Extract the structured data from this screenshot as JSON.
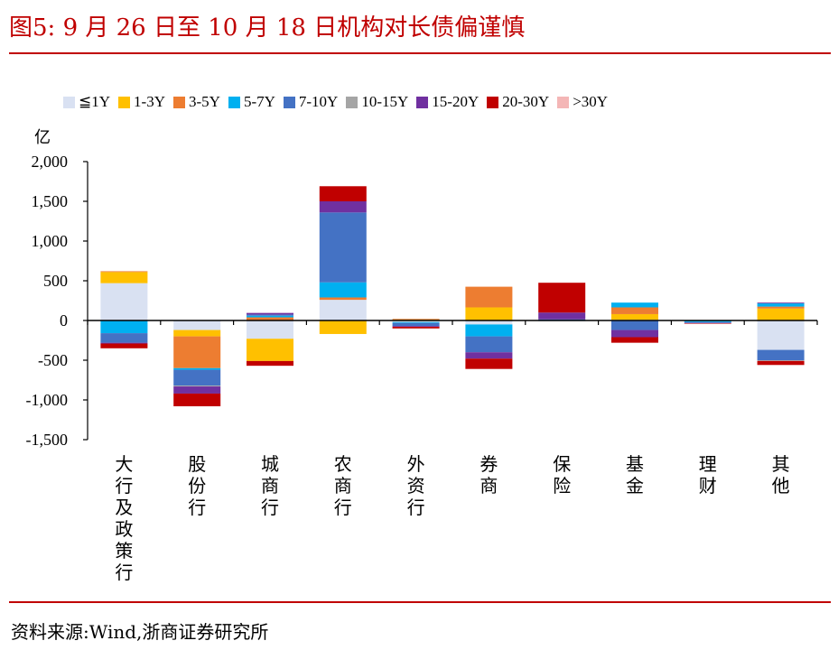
{
  "header": {
    "title": "图5:  9 月 26 日至 10 月 18 日机构对长债偏谨慎"
  },
  "footer": {
    "source": "资料来源:Wind,浙商证券研究所"
  },
  "chart_data": {
    "type": "bar",
    "stacked": true,
    "title": "图5:  9 月 26 日至 10 月 18 日机构对长债偏谨慎",
    "xlabel": "",
    "ylabel": "亿",
    "ylim": [
      -1500,
      2000
    ],
    "yticks": [
      -1500,
      -1000,
      -500,
      0,
      500,
      1000,
      1500,
      2000
    ],
    "ytick_labels": [
      "-1,500",
      "-1,000",
      "-500",
      "0",
      "500",
      "1,000",
      "1,500",
      "2,000"
    ],
    "legend_position": "top",
    "categories": [
      "大行及政策行",
      "股份行",
      "城商行",
      "农商行",
      "外资行",
      "券商",
      "保险",
      "基金",
      "理财",
      "其他"
    ],
    "series": [
      {
        "name": "≦1Y",
        "color": "#d9e1f2",
        "values": [
          470,
          -120,
          -230,
          260,
          -20,
          -50,
          -10,
          10,
          0,
          -370
        ]
      },
      {
        "name": "1-3Y",
        "color": "#ffc000",
        "values": [
          140,
          -80,
          -280,
          -170,
          10,
          165,
          0,
          70,
          0,
          150
        ]
      },
      {
        "name": "3-5Y",
        "color": "#ed7d31",
        "values": [
          10,
          -400,
          40,
          30,
          10,
          260,
          0,
          85,
          0,
          25
        ]
      },
      {
        "name": "5-7Y",
        "color": "#00b0f0",
        "values": [
          -160,
          -20,
          20,
          190,
          -10,
          -150,
          0,
          60,
          -20,
          40
        ]
      },
      {
        "name": "7-10Y",
        "color": "#4472c4",
        "values": [
          -120,
          -200,
          15,
          880,
          -40,
          -200,
          15,
          -120,
          -10,
          -130
        ]
      },
      {
        "name": "10-15Y",
        "color": "#a5a5a5",
        "values": [
          0,
          -10,
          0,
          0,
          0,
          0,
          0,
          0,
          0,
          -10
        ]
      },
      {
        "name": "15-20Y",
        "color": "#7030a0",
        "values": [
          -10,
          -90,
          20,
          140,
          -10,
          -80,
          85,
          -90,
          -5,
          10
        ]
      },
      {
        "name": "20-30Y",
        "color": "#c00000",
        "values": [
          -60,
          -160,
          -60,
          190,
          -20,
          -130,
          375,
          -70,
          -5,
          -50
        ]
      },
      {
        "name": ">30Y",
        "color": "#f4b6b6",
        "values": [
          0,
          0,
          0,
          0,
          0,
          0,
          0,
          0,
          0,
          0
        ]
      }
    ]
  }
}
